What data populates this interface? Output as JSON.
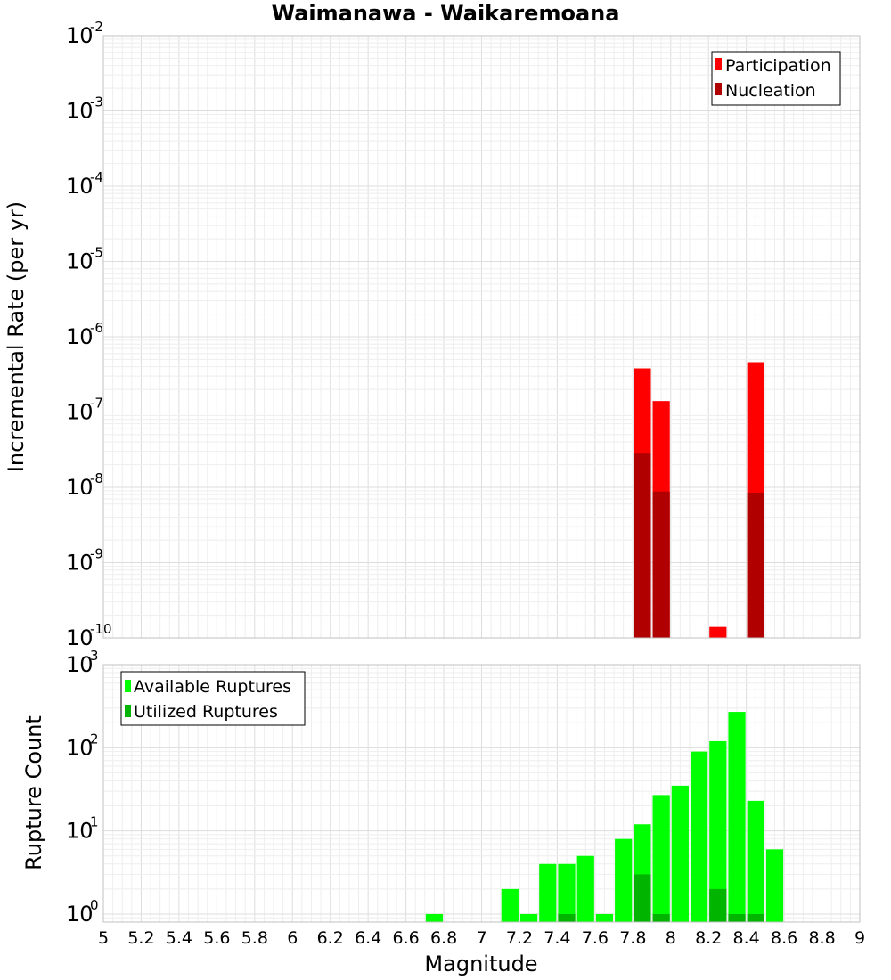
{
  "chart_data": {
    "type": "bar",
    "title": "Waimanawa - Waikaremoana",
    "xlabel": "Magnitude",
    "x_ticks": [
      "5",
      "5.2",
      "5.4",
      "5.6",
      "5.8",
      "6",
      "6.2",
      "6.4",
      "6.6",
      "6.8",
      "7",
      "7.2",
      "7.4",
      "7.6",
      "7.8",
      "8",
      "8.2",
      "8.4",
      "8.6",
      "8.8",
      "9"
    ],
    "xlim": [
      5,
      9
    ],
    "grid": true,
    "panels": [
      {
        "name": "rates",
        "ylabel": "Incremental Rate (per yr)",
        "yscale": "log",
        "ylim": [
          1e-10,
          0.01
        ],
        "y_ticks": [
          {
            "base": "10",
            "exp": "-10",
            "value": 1e-10
          },
          {
            "base": "10",
            "exp": "-9",
            "value": 1e-09
          },
          {
            "base": "10",
            "exp": "-8",
            "value": 1e-08
          },
          {
            "base": "10",
            "exp": "-7",
            "value": 1e-07
          },
          {
            "base": "10",
            "exp": "-6",
            "value": 1e-06
          },
          {
            "base": "10",
            "exp": "-5",
            "value": 1e-05
          },
          {
            "base": "10",
            "exp": "-4",
            "value": 0.0001
          },
          {
            "base": "10",
            "exp": "-3",
            "value": 0.001
          },
          {
            "base": "10",
            "exp": "-2",
            "value": 0.01
          }
        ],
        "legend_position": "top-right",
        "series": [
          {
            "name": "Participation",
            "color": "#ff0000",
            "points": [
              [
                7.85,
                3.8e-07
              ],
              [
                7.95,
                1.4e-07
              ],
              [
                8.25,
                1.4e-10
              ],
              [
                8.45,
                4.6e-07
              ]
            ]
          },
          {
            "name": "Nucleation",
            "color": "#b00000",
            "points": [
              [
                7.85,
                2.8e-08
              ],
              [
                7.95,
                8.8e-09
              ],
              [
                8.45,
                8.5e-09
              ]
            ]
          }
        ]
      },
      {
        "name": "counts",
        "ylabel": "Rupture Count",
        "yscale": "log",
        "ylim": [
          0.8,
          1000
        ],
        "y_ticks": [
          {
            "base": "10",
            "exp": "0",
            "value": 1
          },
          {
            "base": "10",
            "exp": "1",
            "value": 10
          },
          {
            "base": "10",
            "exp": "2",
            "value": 100
          },
          {
            "base": "10",
            "exp": "3",
            "value": 1000
          }
        ],
        "legend_position": "top-left",
        "series": [
          {
            "name": "Available Ruptures",
            "color": "#00ff00",
            "points": [
              [
                6.75,
                1
              ],
              [
                7.15,
                2
              ],
              [
                7.25,
                1
              ],
              [
                7.35,
                4
              ],
              [
                7.45,
                4
              ],
              [
                7.55,
                5
              ],
              [
                7.65,
                1
              ],
              [
                7.75,
                8
              ],
              [
                7.85,
                12
              ],
              [
                7.95,
                27
              ],
              [
                8.05,
                35
              ],
              [
                8.15,
                90
              ],
              [
                8.25,
                120
              ],
              [
                8.35,
                270
              ],
              [
                8.45,
                23
              ],
              [
                8.55,
                6
              ]
            ]
          },
          {
            "name": "Utilized Ruptures",
            "color": "#00b400",
            "points": [
              [
                7.45,
                1
              ],
              [
                7.85,
                3
              ],
              [
                7.95,
                1
              ],
              [
                8.25,
                2
              ],
              [
                8.35,
                1
              ],
              [
                8.45,
                1
              ]
            ]
          }
        ]
      }
    ]
  }
}
